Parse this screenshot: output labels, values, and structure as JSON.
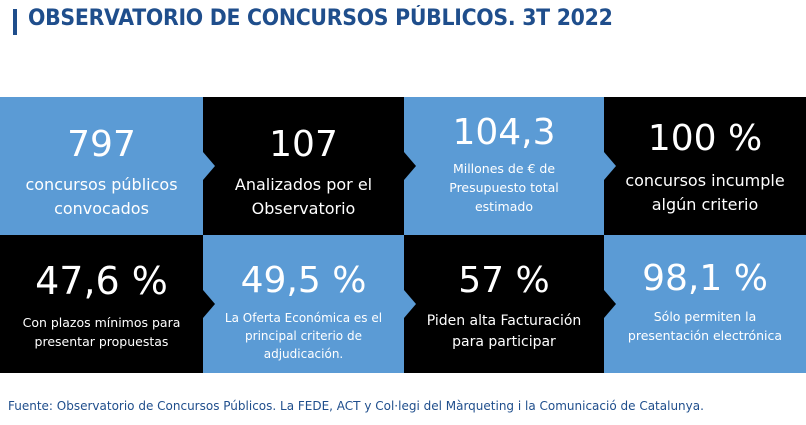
{
  "header": {
    "title": "OBSERVATORIO DE CONCURSOS PÚBLICOS. 3T 2022"
  },
  "tiles_row1": [
    {
      "value": "797",
      "label_lines": [
        "concursos públicos",
        "convocados"
      ],
      "color": "#5b9bd5"
    },
    {
      "value": "107",
      "label_lines": [
        "Analizados por el",
        "Observatorio"
      ],
      "color": "#000000"
    },
    {
      "value": "104,3",
      "label_lines": [
        "Millones de € de",
        "Presupuesto total",
        "estimado"
      ],
      "color": "#5b9bd5"
    },
    {
      "value": "100 %",
      "label_lines": [
        "concursos incumple",
        "algún criterio"
      ],
      "color": "#000000"
    }
  ],
  "tiles_row2": [
    {
      "value": "47,6 %",
      "label_lines": [
        "Con plazos mínimos para",
        "presentar propuestas"
      ],
      "color": "#000000"
    },
    {
      "value": "49,5 %",
      "label_lines": [
        "La Oferta Económica es el",
        "principal criterio de",
        "adjudicación."
      ],
      "color": "#5b9bd5"
    },
    {
      "value": "57 %",
      "label_lines": [
        "Piden alta Facturación",
        "para participar"
      ],
      "color": "#000000"
    },
    {
      "value": "98,1 %",
      "label_lines": [
        "Sólo permiten la",
        "presentación electrónica"
      ],
      "color": "#5b9bd5"
    }
  ],
  "footer": {
    "source": "Fuente: Observatorio de Concursos Públicos. La FEDE, ACT y Col·legi del Màrqueting i la Comunicació de Catalunya."
  },
  "colors": {
    "title": "#1f4e8c",
    "tile_blue": "#5b9bd5",
    "tile_black": "#000000",
    "text_on_tile": "#ffffff"
  }
}
